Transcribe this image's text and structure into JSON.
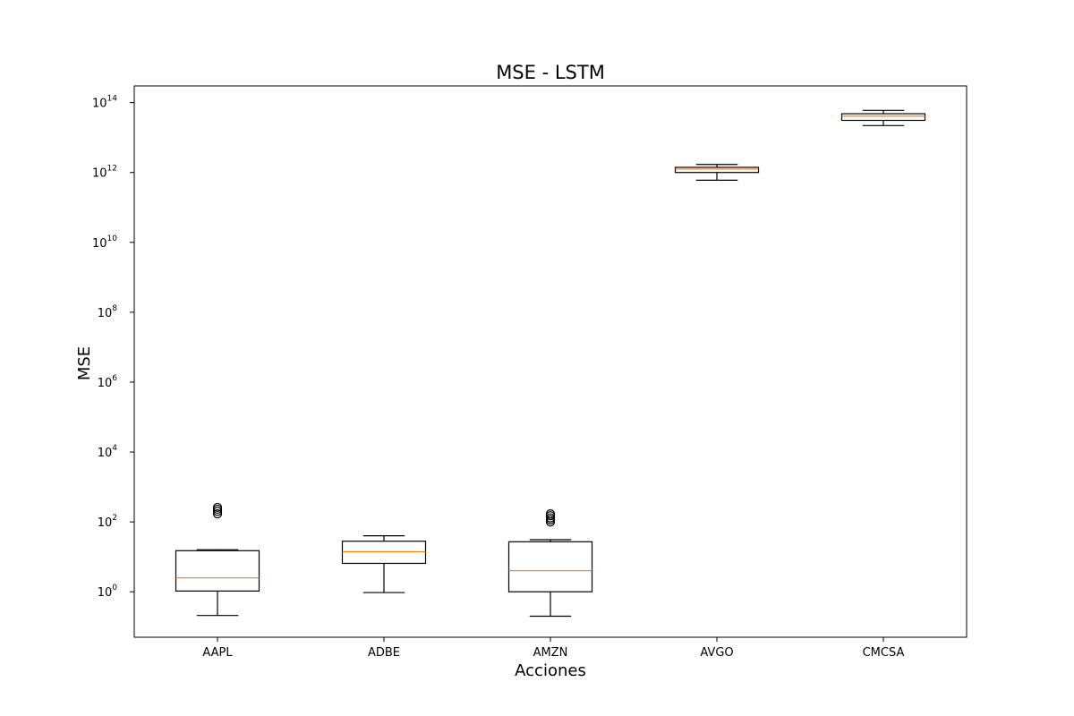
{
  "chart_data": {
    "type": "box",
    "title": "MSE - LSTM",
    "xlabel": "Acciones",
    "ylabel": "MSE",
    "yscale": "log",
    "ylim": [
      0.05,
      300000000000000.0
    ],
    "grid": false,
    "y_ticks": [
      {
        "base": "10",
        "exp": "0",
        "value": 1
      },
      {
        "base": "10",
        "exp": "2",
        "value": 100
      },
      {
        "base": "10",
        "exp": "4",
        "value": 10000
      },
      {
        "base": "10",
        "exp": "6",
        "value": 1000000
      },
      {
        "base": "10",
        "exp": "8",
        "value": 100000000
      },
      {
        "base": "10",
        "exp": "10",
        "value": 10000000000
      },
      {
        "base": "10",
        "exp": "12",
        "value": 1000000000000
      },
      {
        "base": "10",
        "exp": "14",
        "value": 100000000000000
      }
    ],
    "categories": [
      "AAPL",
      "ADBE",
      "AMZN",
      "AVGO",
      "CMCSA"
    ],
    "boxes": [
      {
        "whisker_low": 0.21,
        "q1": 1.05,
        "median": 2.5,
        "q3": 15,
        "whisker_high": 16,
        "outliers": [
          170,
          200,
          230,
          260
        ]
      },
      {
        "whisker_low": 0.95,
        "q1": 6.5,
        "median": 14,
        "q3": 28,
        "whisker_high": 40,
        "outliers": []
      },
      {
        "whisker_low": 0.2,
        "q1": 1.0,
        "median": 4.0,
        "q3": 27,
        "whisker_high": 31,
        "outliers": [
          100,
          115,
          130,
          150,
          170
        ]
      },
      {
        "whisker_low": 600000000000.0,
        "q1": 1000000000000.0,
        "median": 1250000000000.0,
        "q3": 1400000000000.0,
        "whisker_high": 1700000000000.0,
        "outliers": []
      },
      {
        "whisker_low": 22000000000000.0,
        "q1": 31000000000000.0,
        "median": 41000000000000.0,
        "q3": 48000000000000.0,
        "whisker_high": 60000000000000.0,
        "outliers": []
      }
    ],
    "colors": {
      "box": "#000000",
      "median": "#ff7f0e",
      "outlier": "#000000",
      "axes": "#000000"
    }
  }
}
